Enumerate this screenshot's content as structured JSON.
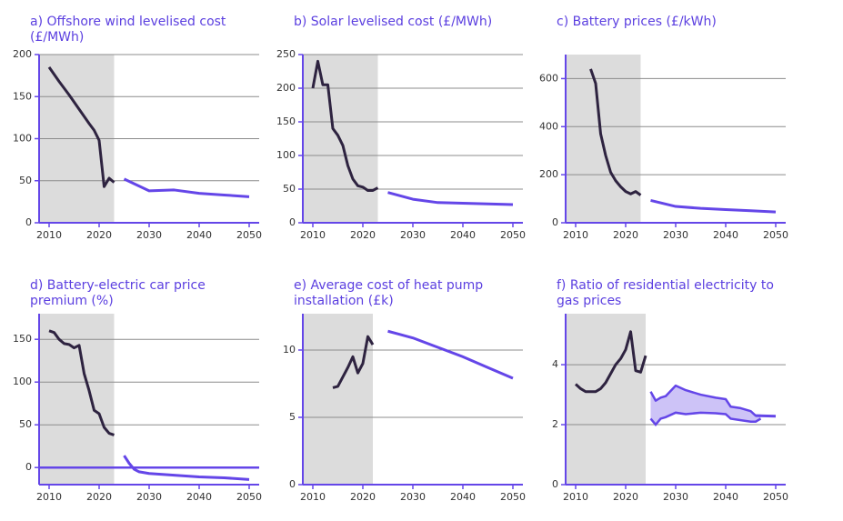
{
  "chart_data": [
    {
      "type": "line",
      "title": "a) Offshore wind levelised cost (£/MWh)",
      "xlim": [
        2008,
        2052
      ],
      "xticks": [
        2010,
        2020,
        2030,
        2040,
        2050
      ],
      "ylim": [
        0,
        200
      ],
      "yticks": [
        0,
        50,
        100,
        150,
        200
      ],
      "grid": true,
      "shade_until": 2023,
      "series": [
        {
          "color": "#2e2340",
          "x": [
            2010,
            2012,
            2014,
            2016,
            2018,
            2019,
            2020,
            2021,
            2022,
            2023
          ],
          "values": [
            185,
            168,
            152,
            135,
            118,
            110,
            98,
            43,
            53,
            48
          ]
        },
        {
          "color": "#6446e8",
          "x": [
            2025,
            2030,
            2035,
            2040,
            2045,
            2050
          ],
          "values": [
            52,
            38,
            39,
            35,
            33,
            31
          ]
        }
      ]
    },
    {
      "type": "line",
      "title": "b) Solar levelised cost (£/MWh)",
      "xlim": [
        2008,
        2052
      ],
      "xticks": [
        2010,
        2020,
        2030,
        2040,
        2050
      ],
      "ylim": [
        0,
        250
      ],
      "yticks": [
        0,
        50,
        100,
        150,
        200,
        250
      ],
      "grid": true,
      "shade_until": 2023,
      "series": [
        {
          "color": "#2e2340",
          "x": [
            2010,
            2011,
            2012,
            2013,
            2014,
            2015,
            2016,
            2017,
            2018,
            2019,
            2020,
            2021,
            2022,
            2023
          ],
          "values": [
            200,
            240,
            205,
            205,
            140,
            130,
            115,
            85,
            65,
            55,
            53,
            48,
            48,
            52
          ]
        },
        {
          "color": "#6446e8",
          "x": [
            2025,
            2030,
            2035,
            2040,
            2045,
            2050
          ],
          "values": [
            45,
            35,
            30,
            29,
            28,
            27
          ]
        }
      ]
    },
    {
      "type": "line",
      "title": "c) Battery prices (£/kWh)",
      "xlim": [
        2008,
        2052
      ],
      "xticks": [
        2010,
        2020,
        2030,
        2040,
        2050
      ],
      "ylim": [
        0,
        700
      ],
      "yticks": [
        0,
        200,
        400,
        600
      ],
      "grid": true,
      "shade_until": 2023,
      "series": [
        {
          "color": "#2e2340",
          "x": [
            2013,
            2014,
            2015,
            2016,
            2017,
            2018,
            2019,
            2020,
            2021,
            2022,
            2023
          ],
          "values": [
            640,
            580,
            370,
            280,
            210,
            175,
            150,
            130,
            120,
            130,
            115
          ]
        },
        {
          "color": "#6446e8",
          "x": [
            2025,
            2030,
            2035,
            2040,
            2045,
            2050
          ],
          "values": [
            93,
            68,
            60,
            55,
            50,
            45
          ]
        }
      ]
    },
    {
      "type": "line",
      "title": "d) Battery-electric car price premium (%)",
      "xlim": [
        2008,
        2052
      ],
      "xticks": [
        2010,
        2020,
        2030,
        2040,
        2050
      ],
      "ylim": [
        -20,
        180
      ],
      "yticks": [
        0,
        50,
        100,
        150
      ],
      "grid": true,
      "shade_until": 2023,
      "hline": 0,
      "series": [
        {
          "color": "#2e2340",
          "x": [
            2010,
            2011,
            2012,
            2013,
            2014,
            2015,
            2016,
            2017,
            2018,
            2019,
            2020,
            2021,
            2022,
            2023
          ],
          "values": [
            160,
            158,
            150,
            145,
            144,
            140,
            143,
            110,
            90,
            67,
            63,
            47,
            40,
            38
          ]
        },
        {
          "color": "#6446e8",
          "x": [
            2025,
            2026,
            2027,
            2028,
            2030,
            2035,
            2040,
            2045,
            2050
          ],
          "values": [
            14,
            5,
            -2,
            -5,
            -7,
            -9,
            -11,
            -12,
            -14
          ]
        }
      ]
    },
    {
      "type": "line",
      "title": "e) Average cost of heat pump installation (£k)",
      "xlim": [
        2008,
        2052
      ],
      "xticks": [
        2010,
        2020,
        2030,
        2040,
        2050
      ],
      "ylim": [
        0,
        12.7
      ],
      "yticks": [
        0,
        5,
        10
      ],
      "grid": true,
      "shade_until": 2022,
      "series": [
        {
          "color": "#2e2340",
          "x": [
            2014,
            2015,
            2016,
            2017,
            2018,
            2019,
            2020,
            2021,
            2022
          ],
          "values": [
            7.2,
            7.3,
            8,
            8.7,
            9.5,
            8.3,
            9,
            11,
            10.4
          ]
        },
        {
          "color": "#6446e8",
          "x": [
            2025,
            2027,
            2030,
            2035,
            2040,
            2045,
            2050
          ],
          "values": [
            11.4,
            11.2,
            10.9,
            10.2,
            9.5,
            8.7,
            7.9
          ]
        }
      ]
    },
    {
      "type": "line",
      "title": "f) Ratio of residential electricity to gas prices",
      "xlim": [
        2008,
        2052
      ],
      "xticks": [
        2010,
        2020,
        2030,
        2040,
        2050
      ],
      "ylim": [
        0,
        5.7
      ],
      "yticks": [
        0,
        2,
        4
      ],
      "grid": true,
      "shade_until": 2024,
      "series": [
        {
          "color": "#2e2340",
          "x": [
            2010,
            2011,
            2012,
            2013,
            2014,
            2015,
            2016,
            2017,
            2018,
            2019,
            2020,
            2021,
            2022,
            2023,
            2024
          ],
          "values": [
            3.35,
            3.2,
            3.1,
            3.1,
            3.1,
            3.2,
            3.4,
            3.7,
            4.0,
            4.2,
            4.5,
            5.1,
            3.8,
            3.75,
            4.3
          ]
        },
        {
          "color": "#6446e8",
          "fill": "#cdc3f7",
          "x": [
            2025,
            2026,
            2027,
            2028,
            2030,
            2032,
            2035,
            2038,
            2040,
            2041,
            2043,
            2045,
            2046,
            2047
          ],
          "values": [
            3.1,
            2.8,
            2.9,
            2.95,
            3.3,
            3.15,
            3.0,
            2.9,
            2.85,
            2.6,
            2.55,
            2.45,
            2.3,
            2.3
          ],
          "lower": [
            2.2,
            2.0,
            2.2,
            2.25,
            2.4,
            2.35,
            2.4,
            2.38,
            2.35,
            2.2,
            2.15,
            2.1,
            2.1,
            2.2
          ]
        },
        {
          "color": "#6446e8",
          "x": [
            2046,
            2050
          ],
          "values": [
            2.3,
            2.28
          ]
        }
      ]
    }
  ]
}
